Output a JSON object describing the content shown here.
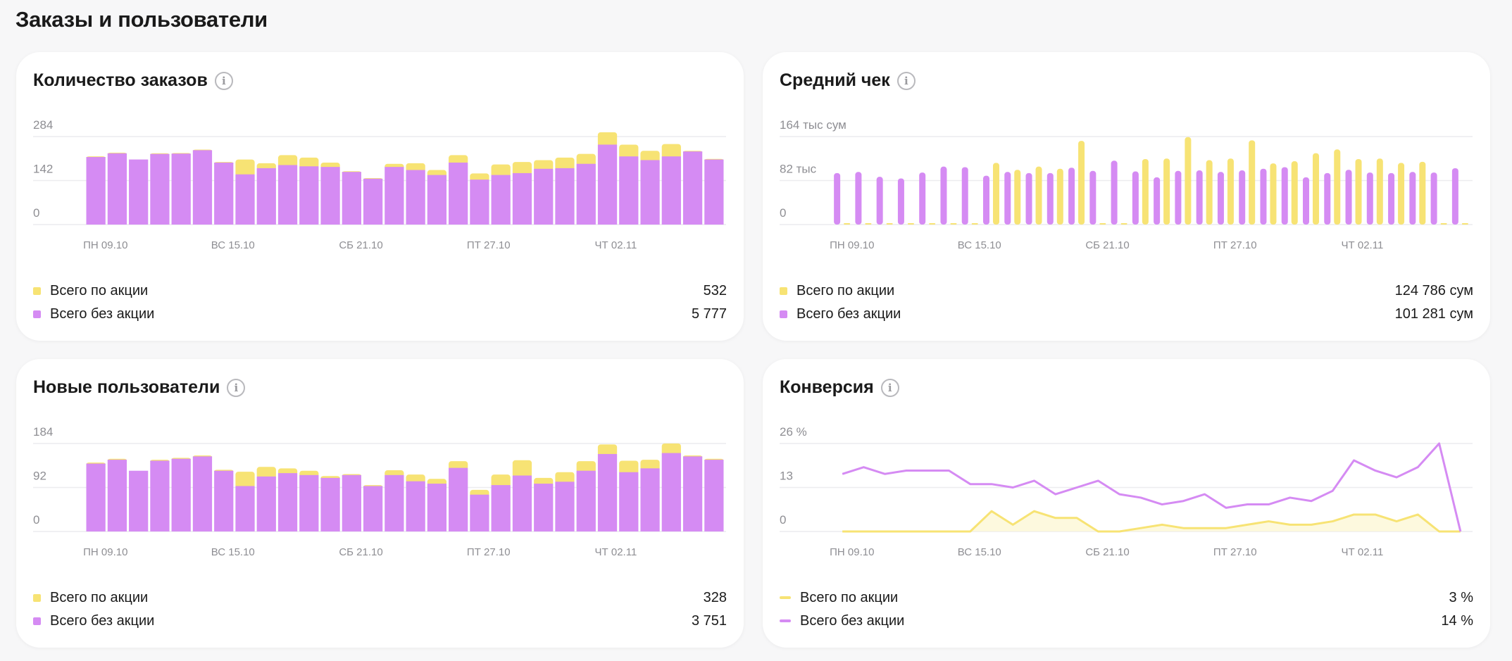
{
  "page_title": "Заказы и пользователи",
  "info_glyph": "i",
  "colors": {
    "promo": "#f7e374",
    "nopromo": "#d58bf3",
    "grid": "#ececef",
    "axis_text": "#8e8e93"
  },
  "x_ticks": [
    "ПН 09.10",
    "ВС 15.10",
    "СБ 21.10",
    "ПТ 27.10",
    "ЧТ 02.11"
  ],
  "cards": [
    {
      "title": "Количество заказов",
      "legend": [
        {
          "label": "Всего по акции",
          "value": "532"
        },
        {
          "label": "Всего без акции",
          "value": "5 777"
        }
      ]
    },
    {
      "title": "Средний чек",
      "legend": [
        {
          "label": "Всего по акции",
          "value": "124 786 сум"
        },
        {
          "label": "Всего без акции",
          "value": "101 281 сум"
        }
      ]
    },
    {
      "title": "Новые пользователи",
      "legend": [
        {
          "label": "Всего по акции",
          "value": "328"
        },
        {
          "label": "Всего без акции",
          "value": "3 751"
        }
      ]
    },
    {
      "title": "Конверсия",
      "legend": [
        {
          "label": "Всего по акции",
          "value": "3 %"
        },
        {
          "label": "Всего без акции",
          "value": "14 %"
        }
      ]
    }
  ],
  "chart_data": [
    {
      "type": "bar",
      "stacked": true,
      "y_tick_labels": [
        "284",
        "142",
        "0"
      ],
      "ylim": [
        0,
        284
      ],
      "x_tick_labels": [
        "ПН 09.10",
        "ВС 15.10",
        "СБ 21.10",
        "ПТ 27.10",
        "ЧТ 02.11"
      ],
      "x_tick_indices": [
        0,
        6,
        12,
        18,
        24
      ],
      "series": [
        {
          "name": "Всего без акции",
          "values": [
            218,
            230,
            210,
            228,
            229,
            240,
            200,
            162,
            182,
            192,
            188,
            186,
            170,
            148,
            186,
            176,
            160,
            200,
            145,
            160,
            166,
            180,
            182,
            196,
            258,
            220,
            208,
            220,
            236,
            210
          ]
        },
        {
          "name": "Всего по акции",
          "values": [
            2,
            2,
            0,
            2,
            2,
            2,
            2,
            48,
            16,
            32,
            28,
            14,
            2,
            2,
            10,
            22,
            16,
            24,
            20,
            34,
            36,
            28,
            34,
            32,
            40,
            38,
            30,
            40,
            2,
            2
          ]
        }
      ]
    },
    {
      "type": "bar",
      "grouped": true,
      "y_tick_labels": [
        "164 тыс сум",
        "82 тыс",
        "0"
      ],
      "ylim": [
        0,
        164000
      ],
      "x_tick_labels": [
        "ПН 09.10",
        "ВС 15.10",
        "СБ 21.10",
        "ПТ 27.10",
        "ЧТ 02.11"
      ],
      "x_tick_indices": [
        0,
        6,
        12,
        18,
        24
      ],
      "series": [
        {
          "name": "Всего без акции",
          "values": [
            96000,
            98000,
            89000,
            86000,
            97000,
            108000,
            107000,
            91000,
            98000,
            96000,
            96000,
            106000,
            100000,
            119000,
            99000,
            88000,
            100000,
            101000,
            98000,
            101000,
            104000,
            107000,
            88000,
            96000,
            102000,
            97000,
            96000,
            98000,
            97000,
            105000
          ]
        },
        {
          "name": "Всего по акции",
          "values": [
            0,
            0,
            0,
            0,
            0,
            0,
            0,
            115000,
            102000,
            108000,
            104000,
            156000,
            0,
            0,
            122000,
            123000,
            163000,
            120000,
            123000,
            157000,
            114000,
            118000,
            133000,
            140000,
            122000,
            123000,
            115000,
            117000,
            0,
            0
          ]
        }
      ]
    },
    {
      "type": "bar",
      "stacked": true,
      "y_tick_labels": [
        "184",
        "92",
        "0"
      ],
      "ylim": [
        0,
        184
      ],
      "x_tick_labels": [
        "ПН 09.10",
        "ВС 15.10",
        "СБ 21.10",
        "ПТ 27.10",
        "ЧТ 02.11"
      ],
      "x_tick_indices": [
        0,
        6,
        12,
        18,
        24
      ],
      "series": [
        {
          "name": "Всего без акции",
          "values": [
            142,
            150,
            127,
            148,
            152,
            157,
            127,
            95,
            115,
            122,
            118,
            112,
            118,
            95,
            118,
            105,
            100,
            133,
            77,
            97,
            117,
            100,
            104,
            127,
            162,
            124,
            132,
            164,
            157,
            150
          ]
        },
        {
          "name": "Всего по акции",
          "values": [
            2,
            2,
            0,
            2,
            2,
            2,
            2,
            30,
            20,
            10,
            9,
            4,
            2,
            2,
            10,
            14,
            10,
            14,
            10,
            22,
            32,
            12,
            20,
            20,
            20,
            24,
            18,
            20,
            2,
            2
          ]
        }
      ]
    },
    {
      "type": "line",
      "y_tick_labels": [
        "26 %",
        "13",
        "0"
      ],
      "ylim": [
        0,
        26
      ],
      "x_tick_labels": [
        "ПН 09.10",
        "ВС 15.10",
        "СБ 21.10",
        "ПТ 27.10",
        "ЧТ 02.11"
      ],
      "x_tick_indices": [
        0,
        6,
        12,
        18,
        24
      ],
      "series": [
        {
          "name": "Всего без акции",
          "values": [
            17,
            19,
            17,
            18,
            18,
            18,
            14,
            14,
            13,
            15,
            11,
            13,
            15,
            11,
            10,
            8,
            9,
            11,
            7,
            8,
            8,
            10,
            9,
            12,
            21,
            18,
            16,
            19,
            26,
            0
          ]
        },
        {
          "name": "Всего по акции",
          "values": [
            0,
            0,
            0,
            0,
            0,
            0,
            0,
            6,
            2,
            6,
            4,
            4,
            0,
            0,
            1,
            2,
            1,
            1,
            1,
            2,
            3,
            2,
            2,
            3,
            5,
            5,
            3,
            5,
            0,
            0
          ]
        }
      ]
    }
  ]
}
